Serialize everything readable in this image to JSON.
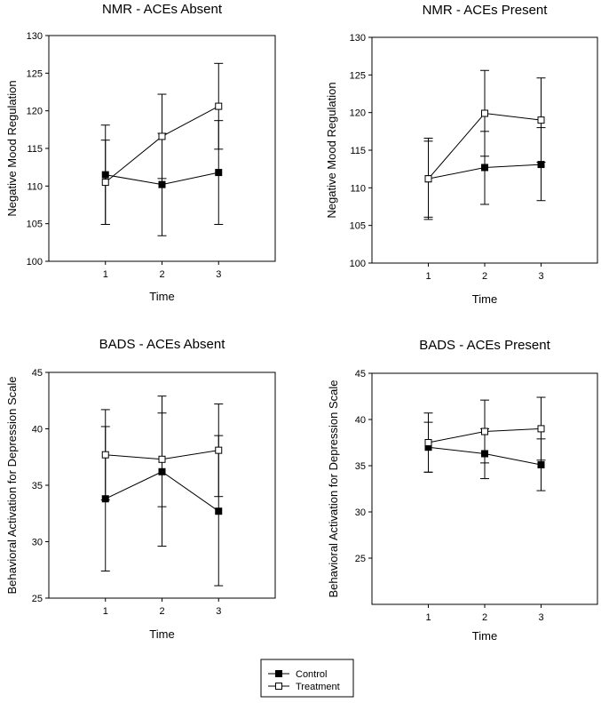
{
  "chart_data": [
    {
      "type": "line",
      "title": "NMR - ACEs Absent",
      "xlabel": "Time",
      "ylabel": "Negative Mood Regulation",
      "categories": [
        "1",
        "2",
        "3"
      ],
      "x": [
        1,
        2,
        3
      ],
      "xlim": [
        0,
        4
      ],
      "ylim": [
        100,
        130
      ],
      "yticks": [
        100,
        105,
        110,
        115,
        120,
        125,
        130
      ],
      "series": [
        {
          "name": "Control",
          "values": [
            111.5,
            110.2,
            111.8
          ],
          "err_low": [
            104.9,
            103.4,
            104.9
          ],
          "err_high": [
            118.1,
            117.0,
            118.7
          ]
        },
        {
          "name": "Treatment",
          "values": [
            110.5,
            116.6,
            120.6
          ],
          "err_low": [
            104.9,
            111.0,
            114.9
          ],
          "err_high": [
            116.1,
            122.2,
            126.3
          ]
        }
      ]
    },
    {
      "type": "line",
      "title": "NMR - ACEs Present",
      "xlabel": "Time",
      "ylabel": "Negative Mood Regulation",
      "categories": [
        "1",
        "2",
        "3"
      ],
      "x": [
        1,
        2,
        3
      ],
      "xlim": [
        0,
        4
      ],
      "ylim": [
        100,
        130
      ],
      "yticks": [
        100,
        105,
        110,
        115,
        120,
        125,
        130
      ],
      "series": [
        {
          "name": "Control",
          "values": [
            111.2,
            112.7,
            113.1
          ],
          "err_low": [
            106.1,
            107.8,
            108.3
          ],
          "err_high": [
            116.2,
            117.5,
            118.0
          ]
        },
        {
          "name": "Treatment",
          "values": [
            111.2,
            119.9,
            119.0
          ],
          "err_low": [
            105.8,
            114.2,
            113.4
          ],
          "err_high": [
            116.6,
            125.6,
            124.6
          ]
        }
      ]
    },
    {
      "type": "line",
      "title": "BADS - ACEs Absent",
      "xlabel": "Time",
      "ylabel": "Behavioral Activation for Depression Scale",
      "categories": [
        "1",
        "2",
        "3"
      ],
      "x": [
        1,
        2,
        3
      ],
      "xlim": [
        0,
        4
      ],
      "ylim": [
        25,
        45
      ],
      "yticks": [
        25,
        30,
        35,
        40,
        45
      ],
      "series": [
        {
          "name": "Control",
          "values": [
            33.8,
            36.2,
            32.7
          ],
          "err_low": [
            27.4,
            29.6,
            26.1
          ],
          "err_high": [
            40.2,
            41.4,
            39.4
          ]
        },
        {
          "name": "Treatment",
          "values": [
            37.7,
            37.3,
            38.1
          ],
          "err_low": [
            33.7,
            33.1,
            34.0
          ],
          "err_high": [
            41.7,
            42.9,
            42.2
          ]
        }
      ]
    },
    {
      "type": "line",
      "title": "BADS - ACEs Present",
      "xlabel": "Time",
      "ylabel": "Behavioral Activation for Depression Scale",
      "categories": [
        "1",
        "2",
        "3"
      ],
      "x": [
        1,
        2,
        3
      ],
      "xlim": [
        0,
        4
      ],
      "ylim": [
        20,
        45
      ],
      "yticks": [
        25,
        30,
        35,
        40,
        45
      ],
      "series": [
        {
          "name": "Control",
          "values": [
            37.0,
            36.3,
            35.1
          ],
          "err_low": [
            34.3,
            33.6,
            32.3
          ],
          "err_high": [
            39.7,
            39.0,
            37.9
          ]
        },
        {
          "name": "Treatment",
          "values": [
            37.5,
            38.7,
            39.0
          ],
          "err_low": [
            34.3,
            35.3,
            35.6
          ],
          "err_high": [
            40.7,
            42.1,
            42.4
          ]
        }
      ]
    }
  ],
  "legend": {
    "items": [
      {
        "label": "Control",
        "marker": "filled-square"
      },
      {
        "label": "Treatment",
        "marker": "open-square"
      }
    ]
  }
}
